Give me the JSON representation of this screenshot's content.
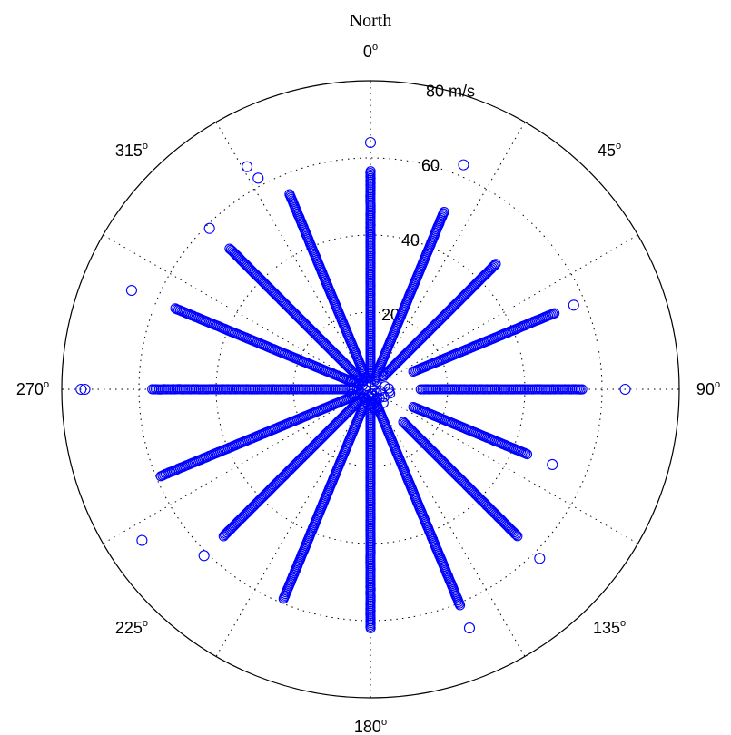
{
  "chart_data": {
    "type": "scatter",
    "coordinate_system": "polar",
    "orientation": "compass (0° at top, clockwise)",
    "title": "North",
    "radial_unit": "m/s",
    "radial_range": [
      0,
      80
    ],
    "radial_ticks": [
      20,
      40,
      60,
      80
    ],
    "angle_ticks": [
      {
        "angle": 0,
        "label": "0"
      },
      {
        "angle": 45,
        "label": "45"
      },
      {
        "angle": 90,
        "label": "90"
      },
      {
        "angle": 135,
        "label": "135"
      },
      {
        "angle": 180,
        "label": "180"
      },
      {
        "angle": 225,
        "label": "225"
      },
      {
        "angle": 270,
        "label": "270"
      },
      {
        "angle": 315,
        "label": "315"
      }
    ],
    "degree_symbol": "o",
    "grid": true,
    "marker": "circle",
    "series_color": "#0000ff",
    "directions_deg": [
      0,
      22.5,
      45,
      67.5,
      90,
      112.5,
      135,
      157.5,
      180,
      202.5,
      225,
      247.5,
      270,
      292.5,
      315,
      337.5
    ],
    "speed_ranges": [
      {
        "dir": 0,
        "min": 3,
        "max": 57
      },
      {
        "dir": 22.5,
        "min": 3,
        "max": 50
      },
      {
        "dir": 45,
        "min": 5,
        "max": 46
      },
      {
        "dir": 67.5,
        "min": 12,
        "max": 52
      },
      {
        "dir": 90,
        "min": 13,
        "max": 55
      },
      {
        "dir": 112.5,
        "min": 12,
        "max": 44
      },
      {
        "dir": 135,
        "min": 12,
        "max": 54
      },
      {
        "dir": 157.5,
        "min": 3,
        "max": 61
      },
      {
        "dir": 180,
        "min": 3,
        "max": 62
      },
      {
        "dir": 202.5,
        "min": 3,
        "max": 59
      },
      {
        "dir": 225,
        "min": 3,
        "max": 54
      },
      {
        "dir": 247.5,
        "min": 3,
        "max": 59
      },
      {
        "dir": 270,
        "min": 3,
        "max": 57
      },
      {
        "dir": 292.5,
        "min": 3,
        "max": 55
      },
      {
        "dir": 315,
        "min": 3,
        "max": 52
      },
      {
        "dir": 337.5,
        "min": 3,
        "max": 55
      }
    ],
    "outliers": [
      {
        "angle": 0,
        "r": 64
      },
      {
        "angle": 22.5,
        "r": 63
      },
      {
        "angle": 67.5,
        "r": 57
      },
      {
        "angle": 90,
        "r": 66
      },
      {
        "angle": 112.5,
        "r": 51
      },
      {
        "angle": 135,
        "r": 62
      },
      {
        "angle": 157.5,
        "r": 67
      },
      {
        "angle": 225,
        "r": 61
      },
      {
        "angle": 236.5,
        "r": 71
      },
      {
        "angle": 270,
        "r": 75
      },
      {
        "angle": 270,
        "r": 74
      },
      {
        "angle": 292.5,
        "r": 67
      },
      {
        "angle": 315,
        "r": 59
      },
      {
        "angle": 331,
        "r": 66
      },
      {
        "angle": 332,
        "r": 62
      }
    ]
  }
}
